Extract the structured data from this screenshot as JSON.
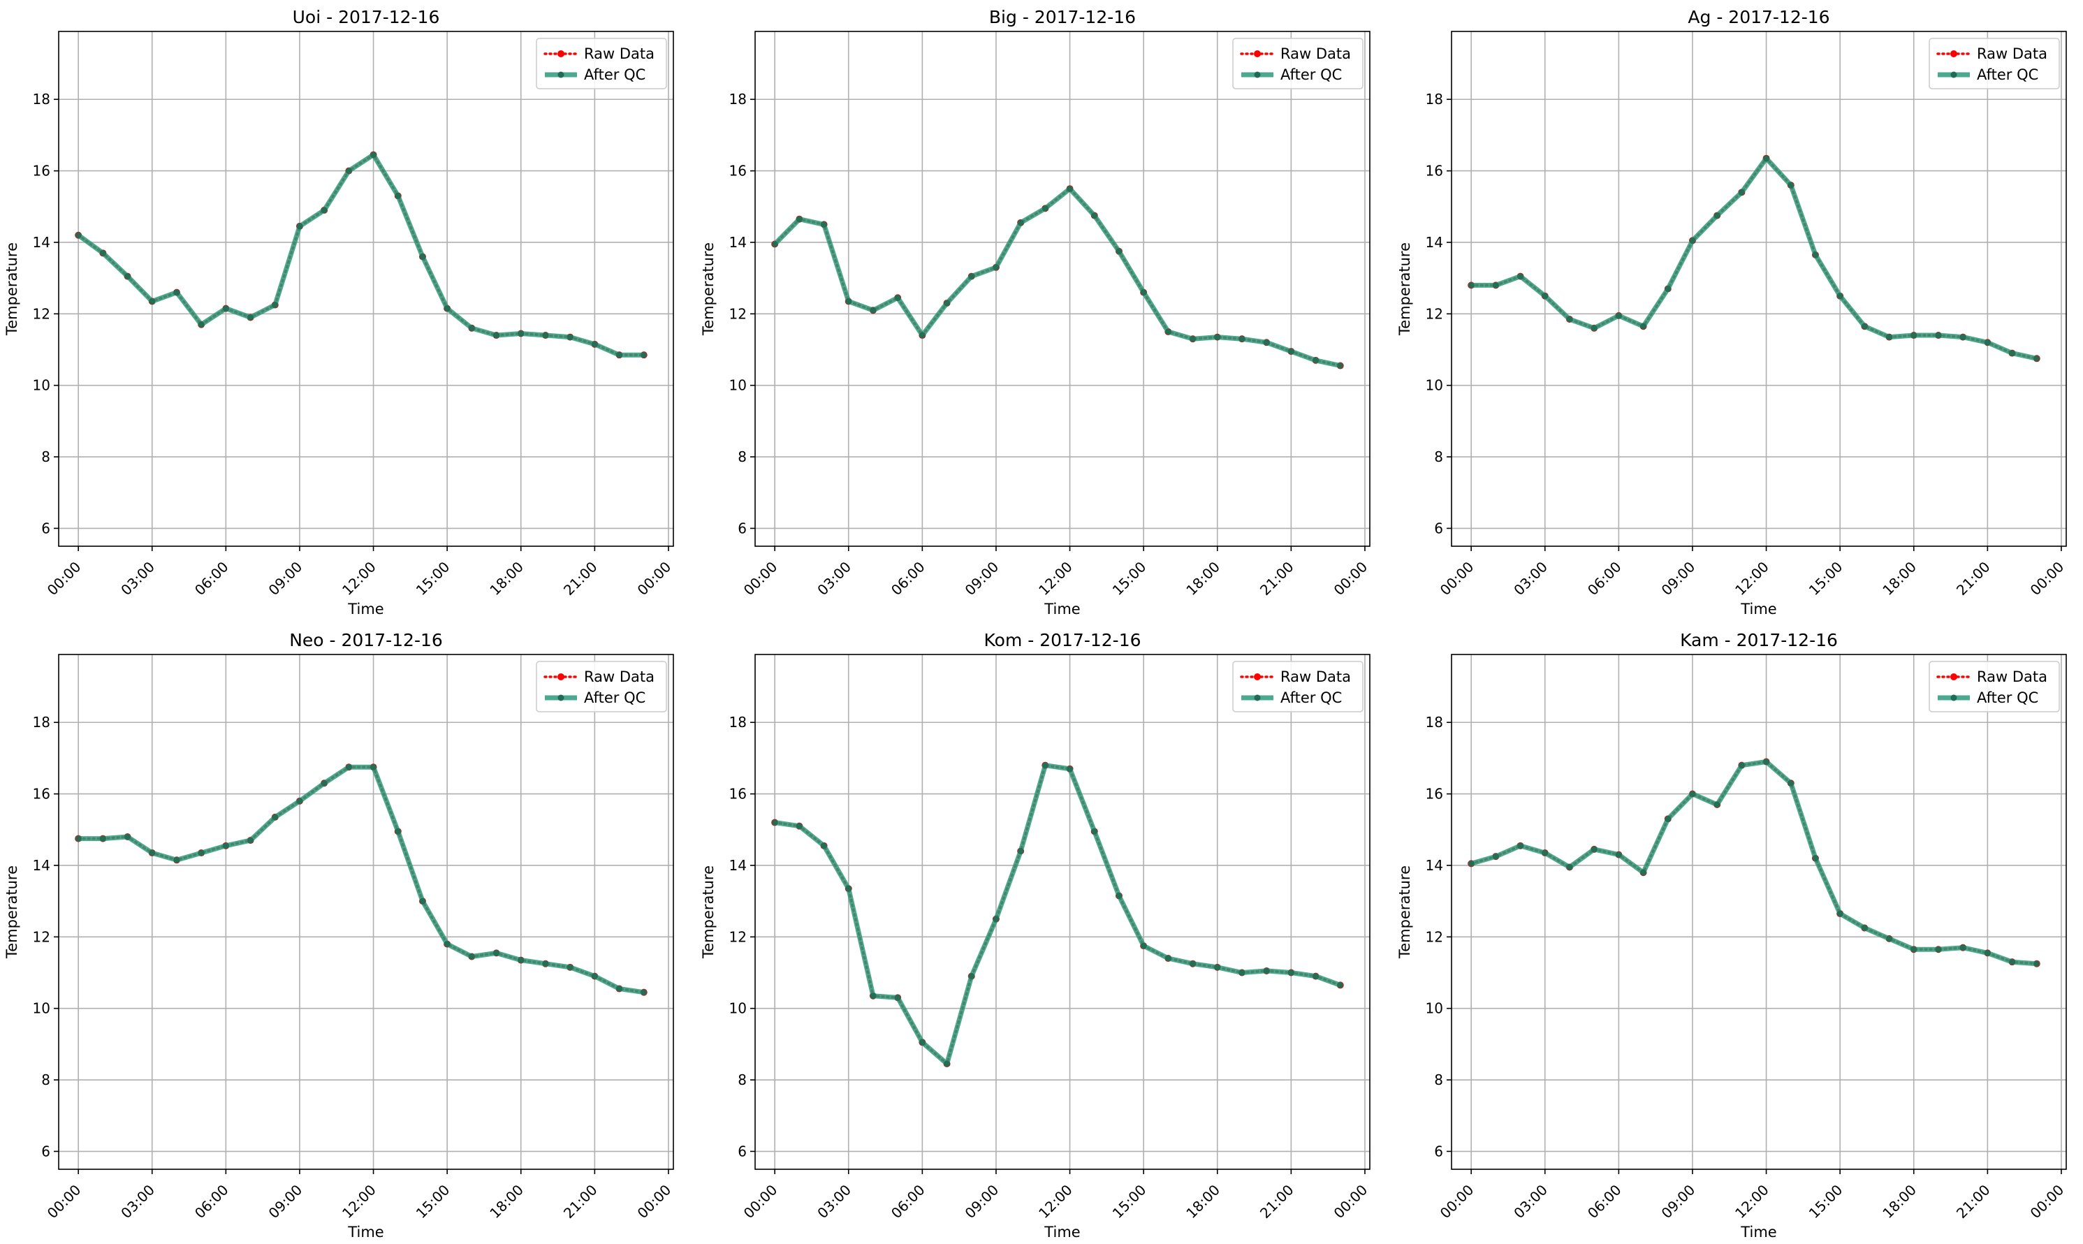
{
  "chart_data": [
    {
      "type": "line",
      "title": "Uoi - 2017-12-16",
      "xlabel": "Time",
      "ylabel": "Temperature",
      "ylim": [
        5.5,
        19.9
      ],
      "yticks": [
        6,
        8,
        10,
        12,
        14,
        16,
        18
      ],
      "xlim": [
        -0.8,
        24.2
      ],
      "xticks": [
        0,
        3,
        6,
        9,
        12,
        15,
        18,
        21,
        24
      ],
      "xtick_labels": [
        "00:00",
        "03:00",
        "06:00",
        "09:00",
        "12:00",
        "15:00",
        "18:00",
        "21:00",
        "00:00"
      ],
      "grid": true,
      "legend": "top-right",
      "x": [
        0,
        1,
        2,
        3,
        4,
        5,
        6,
        7,
        8,
        9,
        10,
        11,
        12,
        13,
        14,
        15,
        16,
        17,
        18,
        19,
        20,
        21,
        22,
        23
      ],
      "series": [
        {
          "name": "Raw Data",
          "color": "#ff0000",
          "values": [
            14.2,
            13.7,
            13.05,
            12.35,
            12.6,
            11.7,
            12.15,
            11.9,
            12.25,
            14.45,
            14.9,
            16.0,
            16.45,
            15.3,
            13.6,
            12.15,
            11.6,
            11.4,
            11.45,
            11.4,
            11.35,
            11.15,
            10.85,
            10.85
          ]
        },
        {
          "name": "After QC",
          "color": "#2a9a7a",
          "values": [
            14.2,
            13.7,
            13.05,
            12.35,
            12.6,
            11.7,
            12.15,
            11.9,
            12.25,
            14.45,
            14.9,
            16.0,
            16.45,
            15.3,
            13.6,
            12.15,
            11.6,
            11.4,
            11.45,
            11.4,
            11.35,
            11.15,
            10.85,
            10.85
          ]
        }
      ]
    },
    {
      "type": "line",
      "title": "Big - 2017-12-16",
      "xlabel": "Time",
      "ylabel": "Temperature",
      "ylim": [
        5.5,
        19.9
      ],
      "yticks": [
        6,
        8,
        10,
        12,
        14,
        16,
        18
      ],
      "xlim": [
        -0.8,
        24.2
      ],
      "xticks": [
        0,
        3,
        6,
        9,
        12,
        15,
        18,
        21,
        24
      ],
      "xtick_labels": [
        "00:00",
        "03:00",
        "06:00",
        "09:00",
        "12:00",
        "15:00",
        "18:00",
        "21:00",
        "00:00"
      ],
      "grid": true,
      "legend": "top-right",
      "x": [
        0,
        1,
        2,
        3,
        4,
        5,
        6,
        7,
        8,
        9,
        10,
        11,
        12,
        13,
        14,
        15,
        16,
        17,
        18,
        19,
        20,
        21,
        22,
        23
      ],
      "series": [
        {
          "name": "Raw Data",
          "color": "#ff0000",
          "values": [
            13.95,
            14.65,
            14.5,
            12.35,
            12.1,
            12.45,
            11.4,
            12.3,
            13.05,
            13.3,
            14.55,
            14.95,
            15.5,
            14.75,
            13.75,
            12.6,
            11.5,
            11.3,
            11.35,
            11.3,
            11.2,
            10.95,
            10.7,
            10.55
          ]
        },
        {
          "name": "After QC",
          "color": "#2a9a7a",
          "values": [
            13.95,
            14.65,
            14.5,
            12.35,
            12.1,
            12.45,
            11.4,
            12.3,
            13.05,
            13.3,
            14.55,
            14.95,
            15.5,
            14.75,
            13.75,
            12.6,
            11.5,
            11.3,
            11.35,
            11.3,
            11.2,
            10.95,
            10.7,
            10.55
          ]
        }
      ]
    },
    {
      "type": "line",
      "title": "Ag - 2017-12-16",
      "xlabel": "Time",
      "ylabel": "Temperature",
      "ylim": [
        5.5,
        19.9
      ],
      "yticks": [
        6,
        8,
        10,
        12,
        14,
        16,
        18
      ],
      "xlim": [
        -0.8,
        24.2
      ],
      "xticks": [
        0,
        3,
        6,
        9,
        12,
        15,
        18,
        21,
        24
      ],
      "xtick_labels": [
        "00:00",
        "03:00",
        "06:00",
        "09:00",
        "12:00",
        "15:00",
        "18:00",
        "21:00",
        "00:00"
      ],
      "grid": true,
      "legend": "top-right",
      "x": [
        0,
        1,
        2,
        3,
        4,
        5,
        6,
        7,
        8,
        9,
        10,
        11,
        12,
        13,
        14,
        15,
        16,
        17,
        18,
        19,
        20,
        21,
        22,
        23
      ],
      "series": [
        {
          "name": "Raw Data",
          "color": "#ff0000",
          "values": [
            12.8,
            12.8,
            13.05,
            12.5,
            11.85,
            11.6,
            11.95,
            11.65,
            12.7,
            14.05,
            14.75,
            15.4,
            16.35,
            15.6,
            13.65,
            12.5,
            11.65,
            11.35,
            11.4,
            11.4,
            11.35,
            11.2,
            10.9,
            10.75
          ]
        },
        {
          "name": "After QC",
          "color": "#2a9a7a",
          "values": [
            12.8,
            12.8,
            13.05,
            12.5,
            11.85,
            11.6,
            11.95,
            11.65,
            12.7,
            14.05,
            14.75,
            15.4,
            16.35,
            15.6,
            13.65,
            12.5,
            11.65,
            11.35,
            11.4,
            11.4,
            11.35,
            11.2,
            10.9,
            10.75
          ]
        }
      ]
    },
    {
      "type": "line",
      "title": "Neo - 2017-12-16",
      "xlabel": "Time",
      "ylabel": "Temperature",
      "ylim": [
        5.5,
        19.9
      ],
      "yticks": [
        6,
        8,
        10,
        12,
        14,
        16,
        18
      ],
      "xlim": [
        -0.8,
        24.2
      ],
      "xticks": [
        0,
        3,
        6,
        9,
        12,
        15,
        18,
        21,
        24
      ],
      "xtick_labels": [
        "00:00",
        "03:00",
        "06:00",
        "09:00",
        "12:00",
        "15:00",
        "18:00",
        "21:00",
        "00:00"
      ],
      "grid": true,
      "legend": "top-right",
      "x": [
        0,
        1,
        2,
        3,
        4,
        5,
        6,
        7,
        8,
        9,
        10,
        11,
        12,
        13,
        14,
        15,
        16,
        17,
        18,
        19,
        20,
        21,
        22,
        23
      ],
      "series": [
        {
          "name": "Raw Data",
          "color": "#ff0000",
          "values": [
            14.75,
            14.75,
            14.8,
            14.35,
            14.15,
            14.35,
            14.55,
            14.7,
            15.35,
            15.8,
            16.3,
            16.75,
            16.75,
            14.95,
            13.0,
            11.8,
            11.45,
            11.55,
            11.35,
            11.25,
            11.15,
            10.9,
            10.55,
            10.45
          ]
        },
        {
          "name": "After QC",
          "color": "#2a9a7a",
          "values": [
            14.75,
            14.75,
            14.8,
            14.35,
            14.15,
            14.35,
            14.55,
            14.7,
            15.35,
            15.8,
            16.3,
            16.75,
            16.75,
            14.95,
            13.0,
            11.8,
            11.45,
            11.55,
            11.35,
            11.25,
            11.15,
            10.9,
            10.55,
            10.45
          ]
        }
      ]
    },
    {
      "type": "line",
      "title": "Kom - 2017-12-16",
      "xlabel": "Time",
      "ylabel": "Temperature",
      "ylim": [
        5.5,
        19.9
      ],
      "yticks": [
        6,
        8,
        10,
        12,
        14,
        16,
        18
      ],
      "xlim": [
        -0.8,
        24.2
      ],
      "xticks": [
        0,
        3,
        6,
        9,
        12,
        15,
        18,
        21,
        24
      ],
      "xtick_labels": [
        "00:00",
        "03:00",
        "06:00",
        "09:00",
        "12:00",
        "15:00",
        "18:00",
        "21:00",
        "00:00"
      ],
      "grid": true,
      "legend": "top-right",
      "x": [
        0,
        1,
        2,
        3,
        4,
        5,
        6,
        7,
        8,
        9,
        10,
        11,
        12,
        13,
        14,
        15,
        16,
        17,
        18,
        19,
        20,
        21,
        22,
        23
      ],
      "series": [
        {
          "name": "Raw Data",
          "color": "#ff0000",
          "values": [
            15.2,
            15.1,
            14.55,
            13.35,
            10.35,
            10.3,
            9.05,
            8.45,
            10.9,
            12.5,
            14.4,
            16.8,
            16.7,
            14.95,
            13.15,
            11.75,
            11.4,
            11.25,
            11.15,
            11.0,
            11.05,
            11.0,
            10.9,
            10.65
          ]
        },
        {
          "name": "After QC",
          "color": "#2a9a7a",
          "values": [
            15.2,
            15.1,
            14.55,
            13.35,
            10.35,
            10.3,
            9.05,
            8.45,
            10.9,
            12.5,
            14.4,
            16.8,
            16.7,
            14.95,
            13.15,
            11.75,
            11.4,
            11.25,
            11.15,
            11.0,
            11.05,
            11.0,
            10.9,
            10.65
          ]
        }
      ]
    },
    {
      "type": "line",
      "title": "Kam - 2017-12-16",
      "xlabel": "Time",
      "ylabel": "Temperature",
      "ylim": [
        5.5,
        19.9
      ],
      "yticks": [
        6,
        8,
        10,
        12,
        14,
        16,
        18
      ],
      "xlim": [
        -0.8,
        24.2
      ],
      "xticks": [
        0,
        3,
        6,
        9,
        12,
        15,
        18,
        21,
        24
      ],
      "xtick_labels": [
        "00:00",
        "03:00",
        "06:00",
        "09:00",
        "12:00",
        "15:00",
        "18:00",
        "21:00",
        "00:00"
      ],
      "grid": true,
      "legend": "top-right",
      "x": [
        0,
        1,
        2,
        3,
        4,
        5,
        6,
        7,
        8,
        9,
        10,
        11,
        12,
        13,
        14,
        15,
        16,
        17,
        18,
        19,
        20,
        21,
        22,
        23
      ],
      "series": [
        {
          "name": "Raw Data",
          "color": "#ff0000",
          "values": [
            14.05,
            14.25,
            14.55,
            14.35,
            13.95,
            14.45,
            14.3,
            13.8,
            15.3,
            16.0,
            15.7,
            16.8,
            16.9,
            16.3,
            14.2,
            12.65,
            12.25,
            11.95,
            11.65,
            11.65,
            11.7,
            11.55,
            11.3,
            11.25
          ]
        },
        {
          "name": "After QC",
          "color": "#2a9a7a",
          "values": [
            14.05,
            14.25,
            14.55,
            14.35,
            13.95,
            14.45,
            14.3,
            13.8,
            15.3,
            16.0,
            15.7,
            16.8,
            16.9,
            16.3,
            14.2,
            12.65,
            12.25,
            11.95,
            11.65,
            11.65,
            11.7,
            11.55,
            11.3,
            11.25
          ]
        }
      ]
    }
  ]
}
